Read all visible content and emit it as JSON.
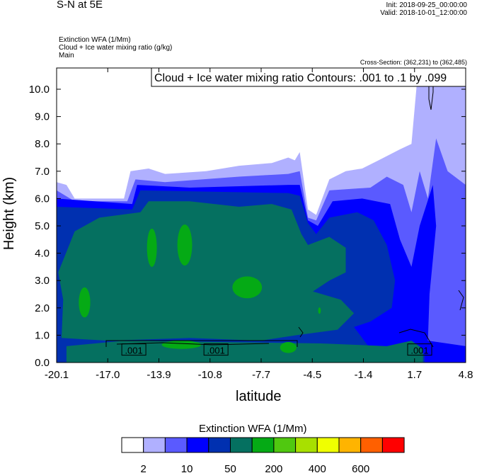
{
  "header": {
    "title": "S-N at 5E",
    "init": "Init: 2018-09-25_00:00:00",
    "valid": "Valid: 2018-10-01_12:00:00",
    "fields": [
      "Extinction WFA   (1/Mm)",
      "Cloud + Ice water mixing ratio   (g/kg)",
      "Main"
    ],
    "cross_section": "Cross-Section: (362,231) to (362,485)"
  },
  "chart_data": {
    "type": "heatmap",
    "subtype": "filled-contour cross-section",
    "contour_info": "Cloud + Ice water mixing ratio Contours: .001 to .1 by .099",
    "xlabel": "latitude",
    "ylabel": "Height (km)",
    "xlim": [
      -20.1,
      4.8
    ],
    "ylim": [
      0,
      10.7
    ],
    "xticks": [
      "-20.1",
      "-17.0",
      "-13.9",
      "-10.8",
      "-7.7",
      "-4.5",
      "-1.4",
      "1.7",
      "4.8"
    ],
    "yticks": [
      "0.0",
      "1.0",
      "2.0",
      "3.0",
      "4.0",
      "5.0",
      "6.0",
      "7.0",
      "8.0",
      "9.0",
      "10.0"
    ],
    "contour_labels": [
      {
        "lat": -15.4,
        "h": 0.45,
        "text": ".001"
      },
      {
        "lat": -10.4,
        "h": 0.45,
        "text": ".001"
      },
      {
        "lat": 2.0,
        "h": 0.45,
        "text": ".001"
      }
    ],
    "colorbar": {
      "title": "Extinction WFA  (1/Mm)",
      "colors": [
        "#ffffff",
        "#b0b0ff",
        "#5a5aff",
        "#0000ff",
        "#0030b0",
        "#057060",
        "#05aa15",
        "#50c810",
        "#a8e000",
        "#f0ff00",
        "#ffb400",
        "#ff6000",
        "#ff0000"
      ],
      "labels": [
        "2",
        "10",
        "50",
        "200",
        "400",
        "600"
      ]
    },
    "regions": [
      {
        "level": 1,
        "pts": [
          [
            -20.1,
            0
          ],
          [
            -20.1,
            6.6
          ],
          [
            -19.5,
            6.5
          ],
          [
            -19,
            6.0
          ],
          [
            -16,
            6.0
          ],
          [
            -15.6,
            7.0
          ],
          [
            -14.5,
            7.1
          ],
          [
            -13.5,
            6.9
          ],
          [
            -11,
            7.0
          ],
          [
            -9,
            7.2
          ],
          [
            -7,
            7.3
          ],
          [
            -6,
            7.5
          ],
          [
            -5.6,
            7.4
          ],
          [
            -5.3,
            7.7
          ],
          [
            -4.8,
            5.6
          ],
          [
            -4.3,
            5.4
          ],
          [
            -3.5,
            6.7
          ],
          [
            -2.5,
            7.0
          ],
          [
            -1.5,
            7.1
          ],
          [
            -0.5,
            7.4
          ],
          [
            0.8,
            7.8
          ],
          [
            1.5,
            8.0
          ],
          [
            1.9,
            10.7
          ],
          [
            4.8,
            10.7
          ],
          [
            4.8,
            0
          ]
        ]
      },
      {
        "level": 2,
        "pts": [
          [
            -20.1,
            0
          ],
          [
            -20.1,
            6.3
          ],
          [
            -19,
            5.9
          ],
          [
            -15.8,
            5.9
          ],
          [
            -15.3,
            6.7
          ],
          [
            -13.5,
            6.6
          ],
          [
            -9,
            6.8
          ],
          [
            -6,
            6.9
          ],
          [
            -5.3,
            7.0
          ],
          [
            -4.8,
            5.3
          ],
          [
            -4.3,
            5.2
          ],
          [
            -3.5,
            6.3
          ],
          [
            -1,
            6.4
          ],
          [
            0,
            6.8
          ],
          [
            1,
            6.5
          ],
          [
            1.5,
            5.5
          ],
          [
            2,
            7.0
          ],
          [
            2.5,
            6.0
          ],
          [
            3.0,
            8.2
          ],
          [
            3.7,
            7.0
          ],
          [
            4.8,
            6.5
          ],
          [
            4.8,
            0
          ]
        ]
      },
      {
        "level": 3,
        "pts": [
          [
            -20.1,
            0
          ],
          [
            -20.1,
            6.0
          ],
          [
            -15.5,
            5.8
          ],
          [
            -15.2,
            6.5
          ],
          [
            -12,
            6.4
          ],
          [
            -6,
            6.5
          ],
          [
            -5.3,
            6.5
          ],
          [
            -4.8,
            5.2
          ],
          [
            -4.2,
            5.0
          ],
          [
            -3.3,
            5.9
          ],
          [
            -1.5,
            6.0
          ],
          [
            0.2,
            5.8
          ],
          [
            0.8,
            4.5
          ],
          [
            1.5,
            3.5
          ],
          [
            2,
            5
          ],
          [
            2.8,
            6.5
          ],
          [
            3.0,
            5.0
          ],
          [
            2.6,
            2.5
          ],
          [
            2.5,
            0.8
          ],
          [
            4.8,
            0.6
          ],
          [
            4.8,
            0
          ]
        ]
      },
      {
        "level": 4,
        "pts": [
          [
            -20.1,
            0
          ],
          [
            -20.1,
            5.7
          ],
          [
            -15.5,
            5.6
          ],
          [
            -15,
            6.3
          ],
          [
            -6,
            6.2
          ],
          [
            -5.3,
            6.1
          ],
          [
            -4.8,
            5.1
          ],
          [
            -4.3,
            4.7
          ],
          [
            -3.5,
            5.3
          ],
          [
            -1.8,
            5.5
          ],
          [
            -0.8,
            5.2
          ],
          [
            0,
            4.3
          ],
          [
            0.5,
            3.0
          ],
          [
            0.3,
            2.0
          ],
          [
            -1,
            1.5
          ],
          [
            -2,
            1.3
          ],
          [
            -1,
            0.5
          ],
          [
            0.5,
            0.3
          ],
          [
            1.5,
            0.5
          ],
          [
            2.3,
            0.3
          ],
          [
            2.3,
            0
          ]
        ]
      },
      {
        "level": 5,
        "pts": [
          [
            -19.8,
            0.9
          ],
          [
            -19.7,
            2.3
          ],
          [
            -20.0,
            3.3
          ],
          [
            -19,
            4.8
          ],
          [
            -17.5,
            5.3
          ],
          [
            -15,
            5.5
          ],
          [
            -14.5,
            5.9
          ],
          [
            -12,
            5.9
          ],
          [
            -9,
            5.7
          ],
          [
            -7,
            5.8
          ],
          [
            -5.8,
            5.6
          ],
          [
            -5.2,
            4.7
          ],
          [
            -4.8,
            4.3
          ],
          [
            -3.5,
            4.6
          ],
          [
            -2.5,
            4.2
          ],
          [
            -2.5,
            3.3
          ],
          [
            -3.5,
            3.0
          ],
          [
            -4.5,
            2.6
          ],
          [
            -2.8,
            2.3
          ],
          [
            -2.0,
            1.8
          ],
          [
            -3.0,
            1.2
          ],
          [
            -5.5,
            1.0
          ],
          [
            -7.7,
            0.8
          ],
          [
            -12,
            0.9
          ],
          [
            -17,
            0.8
          ]
        ]
      },
      {
        "level": 5,
        "pts": [
          [
            -19.5,
            0
          ],
          [
            -19.5,
            0.6
          ],
          [
            -16,
            0.8
          ],
          [
            -4,
            0.7
          ],
          [
            0,
            0.6
          ],
          [
            1.5,
            0.8
          ],
          [
            2.2,
            0.5
          ],
          [
            2.2,
            0
          ]
        ]
      }
    ],
    "blobs": [
      {
        "level": 6,
        "lat": -18.4,
        "h": 2.2,
        "rlat": 0.35,
        "rh": 0.55
      },
      {
        "level": 6,
        "lat": -14.3,
        "h": 4.2,
        "rlat": 0.3,
        "rh": 0.7
      },
      {
        "level": 6,
        "lat": -12.3,
        "h": 4.3,
        "rlat": 0.45,
        "rh": 0.75
      },
      {
        "level": 6,
        "lat": -8.5,
        "h": 2.75,
        "rlat": 0.9,
        "rh": 0.4
      },
      {
        "level": 6,
        "lat": -4.1,
        "h": 1.9,
        "rlat": 0.08,
        "rh": 0.12
      },
      {
        "level": 6,
        "lat": -12.5,
        "h": 0.65,
        "rlat": 1.2,
        "rh": 0.15
      },
      {
        "level": 6,
        "lat": -6.0,
        "h": 0.55,
        "rlat": 0.5,
        "rh": 0.2
      }
    ]
  }
}
